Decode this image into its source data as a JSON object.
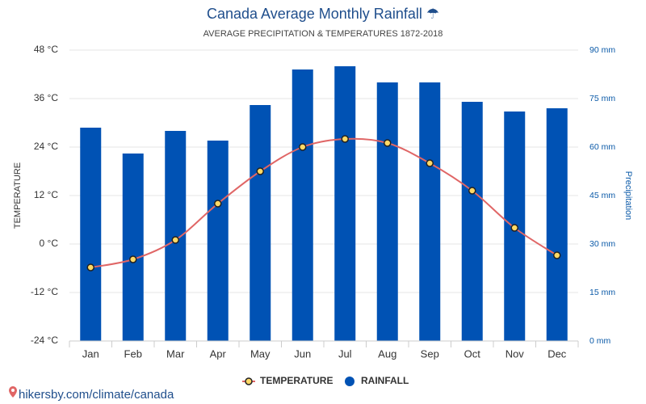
{
  "chart_data": {
    "type": "bar",
    "title": "Canada Average Monthly Rainfall ☂",
    "subtitle": "AVERAGE PRECIPITATION & TEMPERATURES 1872-2018",
    "y_label": "TEMPERATURE",
    "y2_label": "Precipitation",
    "source": "hikersby.com/climate/canada",
    "categories": [
      "Jan",
      "Feb",
      "Mar",
      "Apr",
      "May",
      "Jun",
      "Jul",
      "Aug",
      "Sep",
      "Oct",
      "Nov",
      "Dec"
    ],
    "series": [
      {
        "name": "TEMPERATURE",
        "type": "line",
        "color": "#e06666",
        "marker_color": "#ffd966",
        "axis": "y",
        "values": [
          -5.8,
          -3.8,
          1,
          10,
          18,
          24,
          26,
          25,
          20,
          13.2,
          4,
          -2.8
        ]
      },
      {
        "name": "RAINFALL",
        "type": "bar",
        "color": "#0052b4",
        "axis": "y2",
        "values": [
          66,
          58,
          65,
          62,
          73,
          84,
          85,
          80,
          80,
          74,
          71,
          72
        ]
      }
    ],
    "ylim": [
      -24,
      48
    ],
    "yticks": [
      {
        "value": -24,
        "label": "-24 °C"
      },
      {
        "value": -12,
        "label": "-12 °C"
      },
      {
        "value": 0,
        "label": "0 °C"
      },
      {
        "value": 12,
        "label": "12 °C"
      },
      {
        "value": 24,
        "label": "24 °C"
      },
      {
        "value": 36,
        "label": "36 °C"
      },
      {
        "value": 48,
        "label": "48 °C"
      }
    ],
    "y2lim": [
      0,
      90
    ],
    "y2ticks": [
      {
        "value": 0,
        "label": "0 mm"
      },
      {
        "value": 15,
        "label": "15 mm"
      },
      {
        "value": 30,
        "label": "30 mm"
      },
      {
        "value": 45,
        "label": "45 mm"
      },
      {
        "value": 60,
        "label": "60 mm"
      },
      {
        "value": 75,
        "label": "75 mm"
      },
      {
        "value": 90,
        "label": "90 mm"
      }
    ],
    "grid": true
  }
}
